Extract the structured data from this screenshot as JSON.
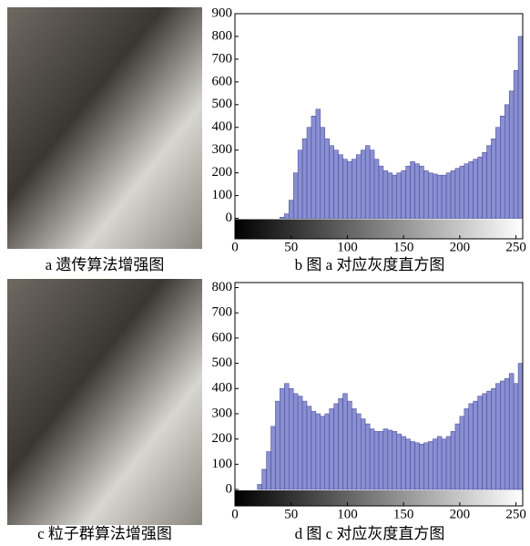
{
  "images": [
    {
      "caption": "a 遗传算法增强图"
    },
    {
      "caption": "c 粒子群算法增强图"
    }
  ],
  "chart_data": [
    {
      "type": "histogram",
      "caption": "b 图 a 对应灰度直方图",
      "color": "#8a8fd2",
      "bins": [
        0,
        4,
        8,
        12,
        16,
        20,
        24,
        28,
        32,
        36,
        40,
        44,
        48,
        52,
        56,
        60,
        64,
        68,
        72,
        76,
        80,
        84,
        88,
        92,
        96,
        100,
        104,
        108,
        112,
        116,
        120,
        124,
        128,
        132,
        136,
        140,
        144,
        148,
        152,
        156,
        160,
        164,
        168,
        172,
        176,
        180,
        184,
        188,
        192,
        196,
        200,
        204,
        208,
        212,
        216,
        220,
        224,
        228,
        232,
        236,
        240,
        244,
        248,
        252,
        256
      ],
      "values": [
        0,
        0,
        0,
        0,
        0,
        0,
        0,
        0,
        0,
        0,
        5,
        20,
        80,
        200,
        300,
        350,
        400,
        450,
        480,
        400,
        350,
        320,
        300,
        280,
        260,
        250,
        260,
        280,
        300,
        320,
        300,
        260,
        230,
        210,
        200,
        190,
        200,
        210,
        230,
        250,
        240,
        230,
        210,
        200,
        195,
        190,
        190,
        200,
        210,
        220,
        230,
        240,
        250,
        260,
        270,
        290,
        320,
        350,
        400,
        450,
        500,
        560,
        650,
        800
      ],
      "xlim": [
        0,
        256
      ],
      "ylim": [
        -90,
        900
      ],
      "xticks": [
        0,
        50,
        100,
        150,
        200,
        250
      ],
      "yticks": [
        0,
        100,
        200,
        300,
        400,
        500,
        600,
        700,
        800,
        900
      ]
    },
    {
      "type": "histogram",
      "caption": "d 图 c 对应灰度直方图",
      "color": "#8a8fd2",
      "bins": [
        0,
        4,
        8,
        12,
        16,
        20,
        24,
        28,
        32,
        36,
        40,
        44,
        48,
        52,
        56,
        60,
        64,
        68,
        72,
        76,
        80,
        84,
        88,
        92,
        96,
        100,
        104,
        108,
        112,
        116,
        120,
        124,
        128,
        132,
        136,
        140,
        144,
        148,
        152,
        156,
        160,
        164,
        168,
        172,
        176,
        180,
        184,
        188,
        192,
        196,
        200,
        204,
        208,
        212,
        216,
        220,
        224,
        228,
        232,
        236,
        240,
        244,
        248,
        252,
        256
      ],
      "values": [
        0,
        0,
        0,
        0,
        0,
        20,
        80,
        150,
        250,
        350,
        400,
        420,
        400,
        380,
        370,
        350,
        330,
        310,
        300,
        290,
        300,
        320,
        340,
        360,
        380,
        350,
        320,
        300,
        280,
        260,
        240,
        230,
        230,
        240,
        235,
        230,
        220,
        210,
        200,
        190,
        185,
        180,
        185,
        190,
        200,
        210,
        200,
        210,
        230,
        260,
        290,
        320,
        340,
        350,
        370,
        380,
        390,
        400,
        420,
        430,
        440,
        460,
        420,
        500
      ],
      "xlim": [
        0,
        256
      ],
      "ylim": [
        -65,
        820
      ],
      "xticks": [
        0,
        50,
        100,
        150,
        200,
        250
      ],
      "yticks": [
        0,
        100,
        200,
        300,
        400,
        500,
        600,
        700,
        800
      ]
    }
  ]
}
